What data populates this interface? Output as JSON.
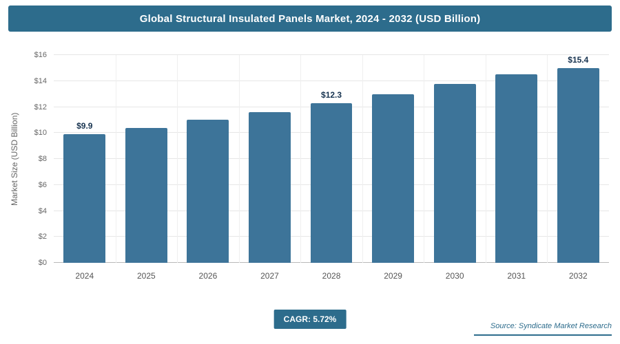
{
  "header": {
    "title": "Global Structural Insulated Panels Market, 2024 - 2032 (USD Billion)"
  },
  "chart_data": {
    "type": "bar",
    "title": "Global Structural Insulated Panels Market, 2024 - 2032 (USD Billion)",
    "categories": [
      "2024",
      "2025",
      "2026",
      "2027",
      "2028",
      "2029",
      "2030",
      "2031",
      "2032"
    ],
    "values": [
      9.9,
      10.4,
      11.0,
      11.6,
      12.3,
      13.0,
      13.75,
      14.5,
      15.4
    ],
    "data_labels": [
      "$9.9",
      "",
      "",
      "",
      "$12.3",
      "",
      "",
      "",
      "$15.4"
    ],
    "xlabel": "",
    "ylabel": "Market Size (USD Billion)",
    "ylim": [
      0,
      16
    ],
    "yticks": [
      "$0",
      "$2",
      "$4",
      "$6",
      "$8",
      "$10",
      "$12",
      "$14",
      "$16"
    ],
    "grid": "light horizontal gridlines at $2 steps, faint vertical gridlines between categories",
    "legend": "none",
    "bar_color": "#3d7499"
  },
  "footer": {
    "cagr_label": "CAGR: 5.72%",
    "source": "Source: Syndicate Market Research"
  },
  "colors": {
    "accent": "#2d6c8c",
    "bar": "#3d7499",
    "data_label_text": "#16324f",
    "axis_text": "#666666",
    "gridline": "#e6e6e6"
  }
}
